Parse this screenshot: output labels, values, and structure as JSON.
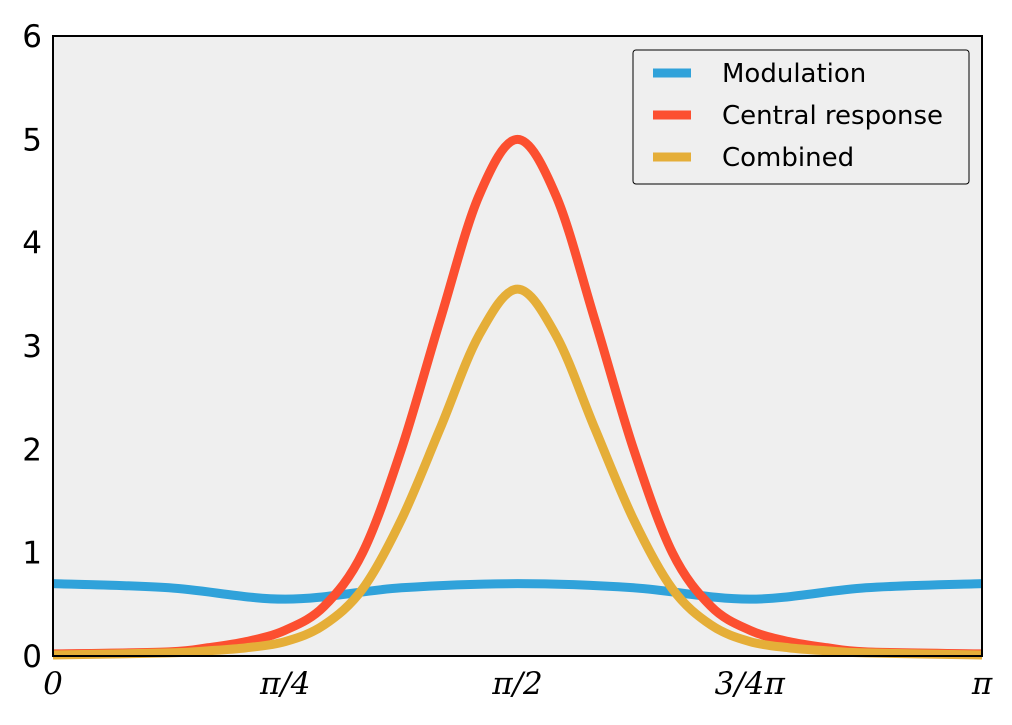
{
  "chart_data": {
    "type": "line",
    "title": "",
    "xlabel": "",
    "ylabel": "",
    "xlim": [
      0,
      3.14159265
    ],
    "ylim": [
      0,
      6
    ],
    "grid": false,
    "legend_position": "top-right",
    "background_color": "#efefef",
    "x_ticks": [
      {
        "value": 0,
        "label": "0"
      },
      {
        "value": 0.785398,
        "label": "π/4"
      },
      {
        "value": 1.570796,
        "label": "π/2"
      },
      {
        "value": 2.356194,
        "label": "3/4π"
      },
      {
        "value": 3.141593,
        "label": "π"
      }
    ],
    "y_ticks": [
      {
        "value": 0,
        "label": "0"
      },
      {
        "value": 1,
        "label": "1"
      },
      {
        "value": 2,
        "label": "2"
      },
      {
        "value": 3,
        "label": "3"
      },
      {
        "value": 4,
        "label": "4"
      },
      {
        "value": 5,
        "label": "5"
      },
      {
        "value": 6,
        "label": "6"
      }
    ],
    "series": [
      {
        "name": "Modulation",
        "color": "#30a2da",
        "x": [
          0,
          0.3927,
          0.7854,
          1.1781,
          1.5708,
          1.9635,
          2.3562,
          2.7489,
          3.1416
        ],
        "y": [
          0.7,
          0.66,
          0.55,
          0.66,
          0.7,
          0.66,
          0.55,
          0.66,
          0.7
        ]
      },
      {
        "name": "Central response",
        "color": "#fc4f30",
        "x": [
          0,
          0.3927,
          0.5236,
          0.6545,
          0.7854,
          0.9163,
          1.0472,
          1.1781,
          1.309,
          1.4399,
          1.5708,
          1.7017,
          1.8326,
          1.9635,
          2.0944,
          2.2253,
          2.3562,
          2.4871,
          2.618,
          2.7489,
          3.1416
        ],
        "y": [
          0.02,
          0.04,
          0.08,
          0.14,
          0.25,
          0.48,
          1.0,
          2.0,
          3.25,
          4.45,
          5.0,
          4.45,
          3.25,
          2.0,
          1.0,
          0.48,
          0.25,
          0.14,
          0.08,
          0.04,
          0.02
        ]
      },
      {
        "name": "Combined",
        "color": "#e5ae38",
        "x": [
          0,
          0.3927,
          0.5236,
          0.6545,
          0.7854,
          0.9163,
          1.0472,
          1.1781,
          1.309,
          1.4399,
          1.5708,
          1.7017,
          1.8326,
          1.9635,
          2.0944,
          2.2253,
          2.3562,
          2.4871,
          2.618,
          2.7489,
          3.1416
        ],
        "y": [
          0.01,
          0.03,
          0.05,
          0.08,
          0.14,
          0.3,
          0.65,
          1.32,
          2.2,
          3.1,
          3.55,
          3.1,
          2.2,
          1.32,
          0.65,
          0.3,
          0.14,
          0.08,
          0.05,
          0.03,
          0.01
        ]
      }
    ]
  }
}
